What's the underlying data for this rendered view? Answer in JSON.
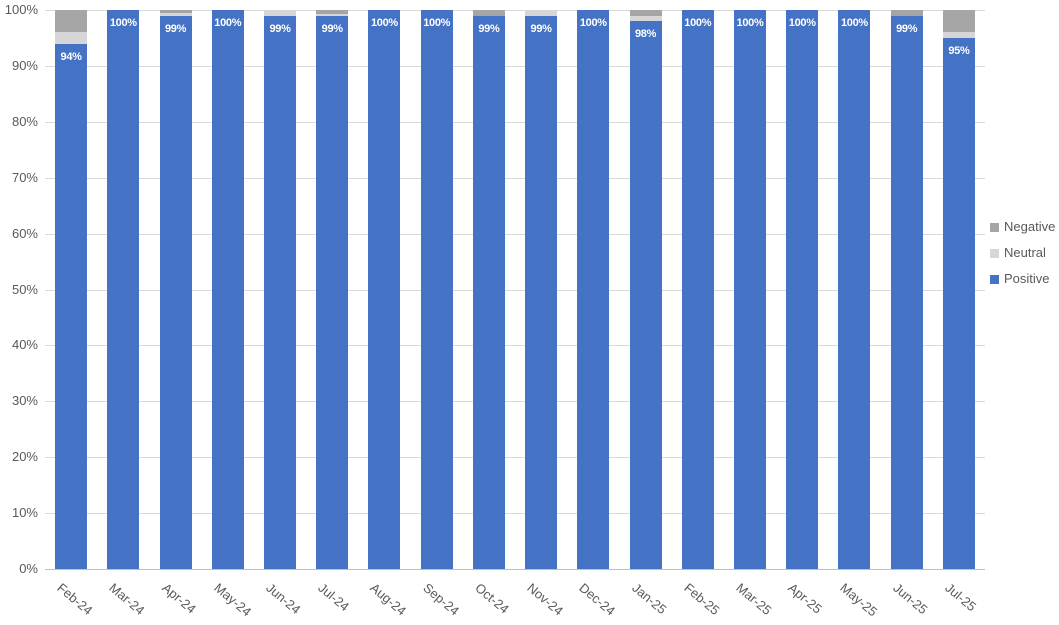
{
  "chart_data": {
    "type": "bar",
    "subtype": "stacked-100-percent",
    "title": "",
    "xlabel": "",
    "ylabel": "",
    "ylim": [
      0,
      100
    ],
    "grid": true,
    "legend_position": "right",
    "categories": [
      "Feb-24",
      "Mar-24",
      "Apr-24",
      "May-24",
      "Jun-24",
      "Jul-24",
      "Aug-24",
      "Sep-24",
      "Oct-24",
      "Nov-24",
      "Dec-24",
      "Jan-25",
      "Feb-25",
      "Mar-25",
      "Apr-25",
      "May-25",
      "Jun-25",
      "Jul-25"
    ],
    "series": [
      {
        "name": "Positive",
        "color": "#4472C4",
        "values": [
          94,
          100,
          99,
          100,
          99,
          99,
          100,
          100,
          99,
          99,
          100,
          98,
          100,
          100,
          100,
          100,
          99,
          95
        ]
      },
      {
        "name": "Neutral",
        "color": "#D6D6D6",
        "values": [
          2,
          0,
          0.4,
          0,
          1,
          0.3,
          0,
          0,
          0,
          1,
          0,
          1,
          0,
          0,
          0,
          0,
          0,
          1
        ]
      },
      {
        "name": "Negative",
        "color": "#A5A5A5",
        "values": [
          4,
          0,
          0.6,
          0,
          0,
          0.7,
          0,
          0,
          1,
          0,
          0,
          1,
          0,
          0,
          0,
          0,
          1,
          4
        ]
      }
    ],
    "bar_labels": [
      "94%",
      "100%",
      "99%",
      "100%",
      "99%",
      "99%",
      "100%",
      "100%",
      "99%",
      "99%",
      "100%",
      "98%",
      "100%",
      "100%",
      "100%",
      "100%",
      "99%",
      "95%"
    ],
    "y_tick_labels": [
      "0%",
      "10%",
      "20%",
      "30%",
      "40%",
      "50%",
      "60%",
      "70%",
      "80%",
      "90%",
      "100%"
    ],
    "legend_order": [
      "Negative",
      "Neutral",
      "Positive"
    ]
  },
  "colors": {
    "axis_text": "#595959",
    "gridline": "#D9D9D9",
    "axis_line": "#C0C0C0",
    "bar_label_text": "#FFFFFF"
  }
}
